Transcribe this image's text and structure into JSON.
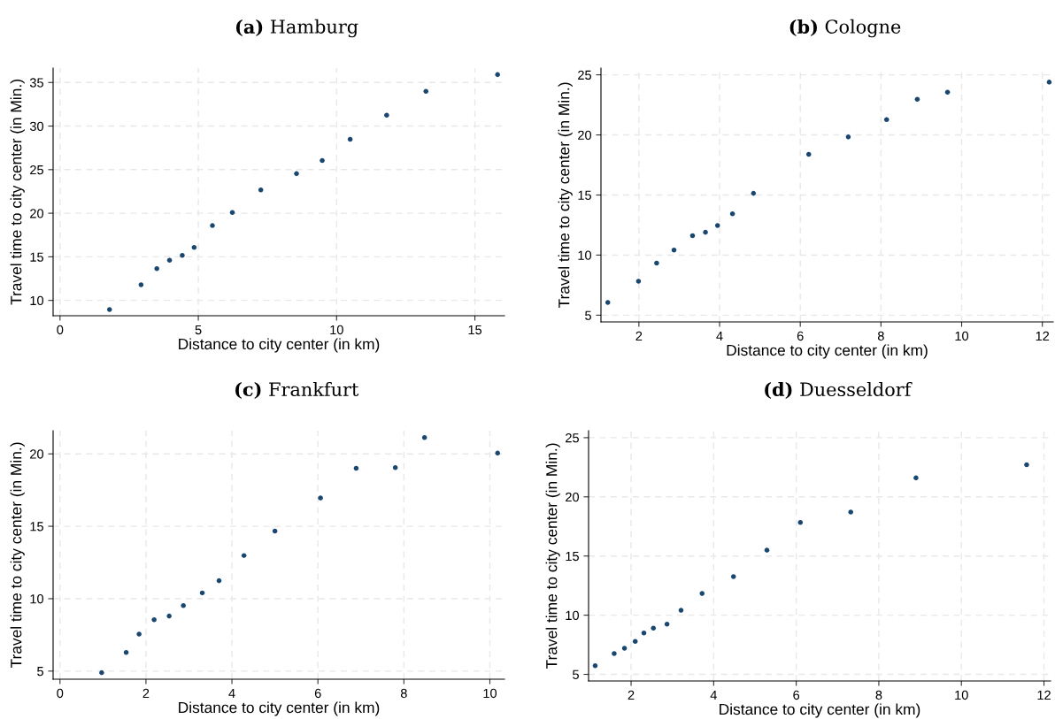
{
  "chart_data": [
    {
      "type": "scatter",
      "title": "(a) Hamburg",
      "xlabel": "Distance to city center (in km)",
      "ylabel": "Travel time to city center (in Min.)",
      "xlim": [
        -0.25,
        16.07
      ],
      "ylim": [
        8.24,
        36.65
      ],
      "xticks": [
        0,
        5,
        10,
        15
      ],
      "yticks": [
        10,
        15,
        20,
        25,
        30,
        35
      ],
      "grid": true,
      "marker": "circle",
      "series": [
        {
          "color": "#1a476f",
          "x": [
            1.79,
            2.93,
            3.5,
            3.96,
            4.42,
            4.85,
            5.51,
            6.23,
            7.26,
            8.55,
            9.48,
            10.49,
            11.81,
            13.23,
            15.82
          ],
          "values": [
            8.95,
            11.8,
            13.64,
            14.61,
            15.17,
            16.07,
            18.58,
            20.08,
            22.67,
            24.54,
            26.04,
            28.48,
            31.25,
            33.99,
            35.9
          ]
        }
      ]
    },
    {
      "type": "scatter",
      "title": "(b) Cologne",
      "xlabel": "Distance to city center (in km)",
      "ylabel": "Travel time to city center (in Min.)",
      "xlim": [
        1.06,
        12.27
      ],
      "ylim": [
        4.44,
        25.56
      ],
      "xticks": [
        2,
        4,
        6,
        8,
        10,
        12
      ],
      "yticks": [
        5,
        10,
        15,
        20,
        25
      ],
      "grid": true,
      "marker": "circle",
      "series": [
        {
          "color": "#1a476f",
          "x": [
            1.23,
            1.99,
            2.44,
            2.87,
            3.33,
            3.65,
            3.95,
            4.32,
            4.84,
            6.21,
            7.19,
            8.14,
            8.9,
            9.65,
            12.17
          ],
          "values": [
            6.06,
            7.82,
            9.33,
            10.42,
            11.62,
            11.9,
            12.46,
            13.44,
            15.14,
            18.38,
            19.83,
            21.28,
            22.96,
            23.55,
            24.39
          ]
        }
      ]
    },
    {
      "type": "scatter",
      "title": "(c) Frankfurt",
      "xlabel": "Distance to city center (in km)",
      "ylabel": "Travel time to city center (in Min.)",
      "xlim": [
        -0.16,
        10.34
      ],
      "ylim": [
        4.44,
        21.6
      ],
      "xticks": [
        0,
        2,
        4,
        6,
        8,
        10
      ],
      "yticks": [
        5,
        10,
        15,
        20
      ],
      "grid": true,
      "marker": "circle",
      "series": [
        {
          "color": "#1a476f",
          "x": [
            0.97,
            1.54,
            1.84,
            2.19,
            2.54,
            2.87,
            3.31,
            3.7,
            4.28,
            5.0,
            6.06,
            6.89,
            7.8,
            8.48,
            10.18
          ],
          "values": [
            4.89,
            6.29,
            7.55,
            8.55,
            8.8,
            9.52,
            10.4,
            11.24,
            12.98,
            14.67,
            16.95,
            19.01,
            19.05,
            21.13,
            20.05
          ]
        }
      ]
    },
    {
      "type": "scatter",
      "title": "(d) Duesseldorf",
      "xlabel": "Distance to city center (in km)",
      "ylabel": "Travel time to city center (in Min.)",
      "xlim": [
        0.97,
        12.16
      ],
      "ylim": [
        4.44,
        25.59
      ],
      "xticks": [
        2,
        4,
        6,
        8,
        10,
        12
      ],
      "yticks": [
        5,
        10,
        15,
        20,
        25
      ],
      "grid": true,
      "marker": "circle",
      "series": [
        {
          "color": "#1a476f",
          "x": [
            1.13,
            1.59,
            1.84,
            2.1,
            2.31,
            2.54,
            2.87,
            3.21,
            3.72,
            4.48,
            5.29,
            6.1,
            7.32,
            8.9,
            11.58
          ],
          "values": [
            5.73,
            6.76,
            7.2,
            7.79,
            8.49,
            8.91,
            9.24,
            10.41,
            11.83,
            13.26,
            15.49,
            17.83,
            18.72,
            21.6,
            22.71
          ]
        }
      ]
    }
  ]
}
